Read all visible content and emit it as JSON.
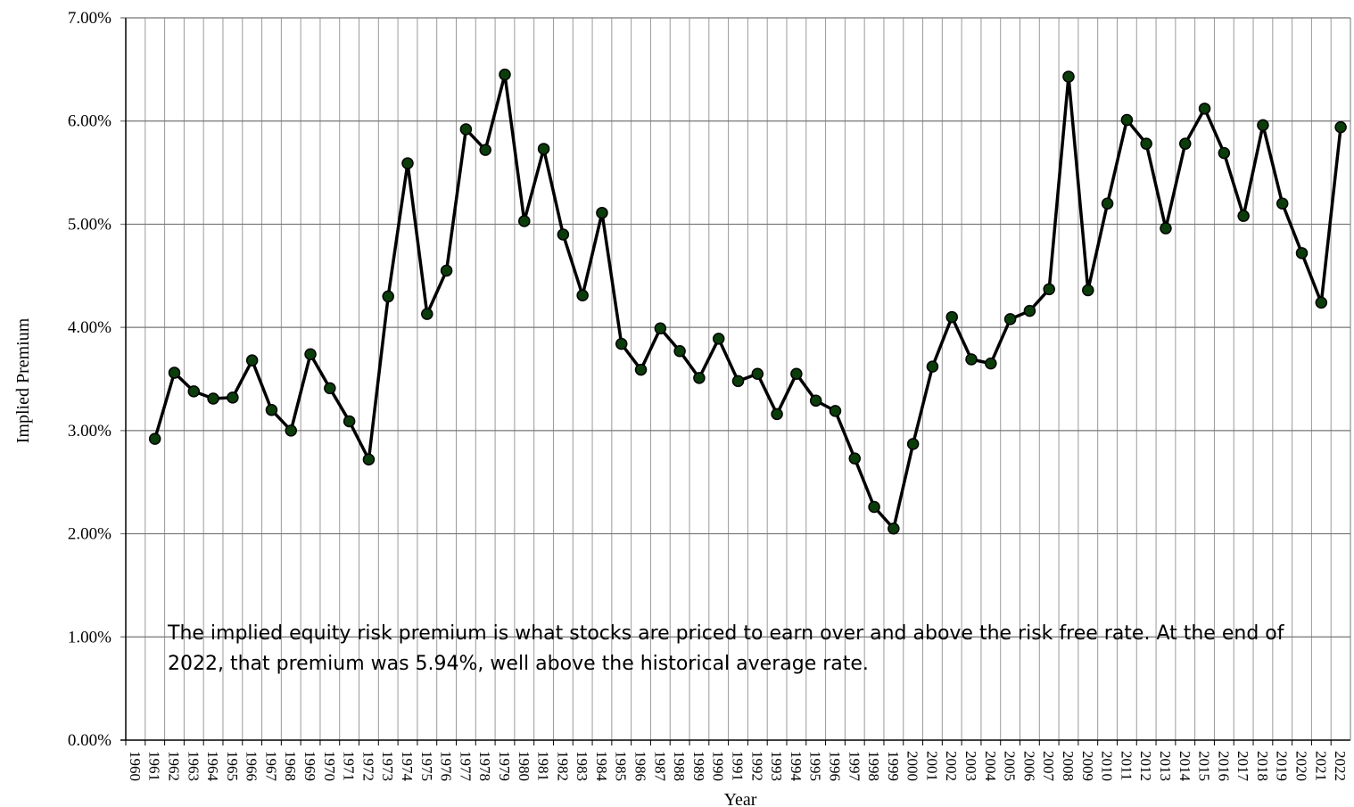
{
  "chart_data": {
    "type": "line",
    "ylabel": "Implied Premium",
    "xlabel": "Year",
    "ylim": [
      0,
      7
    ],
    "y_ticks": [
      "0.00%",
      "1.00%",
      "2.00%",
      "3.00%",
      "4.00%",
      "5.00%",
      "6.00%",
      "7.00%"
    ],
    "categories": [
      "1960",
      "1961",
      "1962",
      "1963",
      "1964",
      "1965",
      "1966",
      "1967",
      "1968",
      "1969",
      "1970",
      "1971",
      "1972",
      "1973",
      "1974",
      "1975",
      "1976",
      "1977",
      "1978",
      "1979",
      "1980",
      "1981",
      "1982",
      "1983",
      "1984",
      "1985",
      "1986",
      "1987",
      "1988",
      "1989",
      "1990",
      "1991",
      "1992",
      "1993",
      "1994",
      "1995",
      "1996",
      "1997",
      "1998",
      "1999",
      "2000",
      "2001",
      "2002",
      "2003",
      "2004",
      "2005",
      "2006",
      "2007",
      "2008",
      "2009",
      "2010",
      "2011",
      "2012",
      "2013",
      "2014",
      "2015",
      "2016",
      "2017",
      "2018",
      "2019",
      "2020",
      "2021",
      "2022"
    ],
    "series": [
      {
        "values": [
          null,
          2.92,
          3.56,
          3.38,
          3.31,
          3.32,
          3.68,
          3.2,
          3.0,
          3.74,
          3.41,
          3.09,
          2.72,
          4.3,
          5.59,
          4.13,
          4.55,
          5.92,
          5.72,
          6.45,
          5.03,
          5.73,
          4.9,
          4.31,
          5.11,
          3.84,
          3.59,
          3.99,
          3.77,
          3.51,
          3.89,
          3.48,
          3.55,
          3.16,
          3.55,
          3.29,
          3.19,
          2.73,
          2.26,
          2.05,
          2.87,
          3.62,
          4.1,
          3.69,
          3.65,
          4.08,
          4.16,
          4.37,
          6.43,
          4.36,
          5.2,
          6.01,
          5.78,
          4.96,
          5.78,
          6.12,
          5.69,
          5.08,
          5.96,
          5.2,
          4.72,
          4.24,
          5.94
        ]
      }
    ],
    "grid": true,
    "annotation": "The implied equity risk premium is what stocks are priced to earn over and above the risk free rate. At the end of 2022, that premium was 5.94%, well above the historical average rate.",
    "colors": {
      "line": "#000000",
      "marker": "#0b3d0b",
      "grid": "#888888"
    }
  }
}
